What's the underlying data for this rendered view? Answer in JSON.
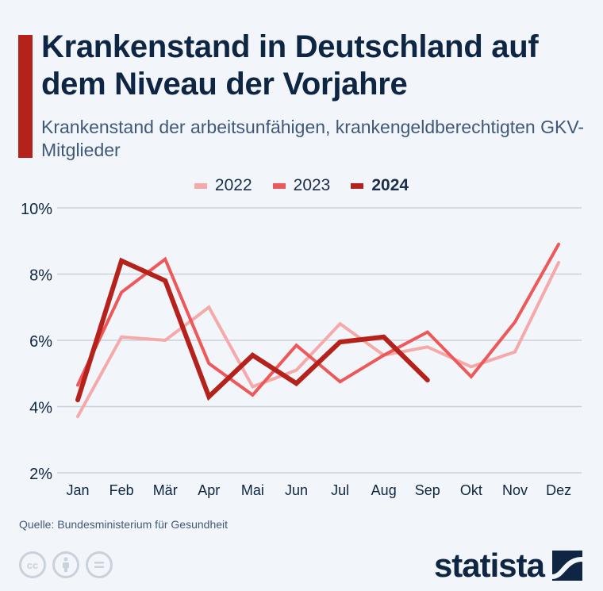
{
  "header": {
    "title": "Krankenstand in Deutschland auf dem Niveau der Vorjahre",
    "subtitle": "Krankenstand der arbeitsunfähigen, krankengeldberechtigten GKV-Mitglieder"
  },
  "footer": {
    "source": "Quelle: Bundesministerium für Gesundheit",
    "logo_text": "statista",
    "license_icons": [
      "cc-icon",
      "attribution-icon",
      "no-derivatives-icon"
    ]
  },
  "colors": {
    "accent": "#b5221b",
    "series_2022": "#f6a9a9",
    "series_2023": "#ee5858",
    "series_2024": "#b5221b",
    "text_dark": "#0e2543",
    "grid": "#c9d1dc"
  },
  "chart_data": {
    "type": "line",
    "title": "Krankenstand in Deutschland auf dem Niveau der Vorjahre",
    "subtitle": "Krankenstand der arbeitsunfähigen, krankengeldberechtigten GKV-Mitglieder",
    "xlabel": "",
    "ylabel": "",
    "categories": [
      "Jan",
      "Feb",
      "Mär",
      "Apr",
      "Mai",
      "Jun",
      "Jul",
      "Aug",
      "Sep",
      "Okt",
      "Nov",
      "Dez"
    ],
    "ylim": [
      2,
      10
    ],
    "yticks": [
      2,
      4,
      6,
      8,
      10
    ],
    "ytick_labels": [
      "2%",
      "4%",
      "6%",
      "8%",
      "10%"
    ],
    "grid": true,
    "legend_position": "top-center",
    "series": [
      {
        "name": "2022",
        "color": "#f6a9a9",
        "bold": false,
        "values": [
          3.7,
          6.1,
          6.0,
          7.0,
          4.6,
          5.1,
          6.5,
          5.55,
          5.8,
          5.2,
          5.65,
          8.35
        ]
      },
      {
        "name": "2023",
        "color": "#ee5858",
        "bold": false,
        "values": [
          4.65,
          7.45,
          8.45,
          5.3,
          4.35,
          5.85,
          4.75,
          5.55,
          6.25,
          4.9,
          6.55,
          8.9
        ]
      },
      {
        "name": "2024",
        "color": "#b5221b",
        "bold": true,
        "values": [
          4.2,
          8.4,
          7.8,
          4.3,
          5.55,
          4.7,
          5.95,
          6.1,
          4.8,
          null,
          null,
          null
        ]
      }
    ]
  }
}
